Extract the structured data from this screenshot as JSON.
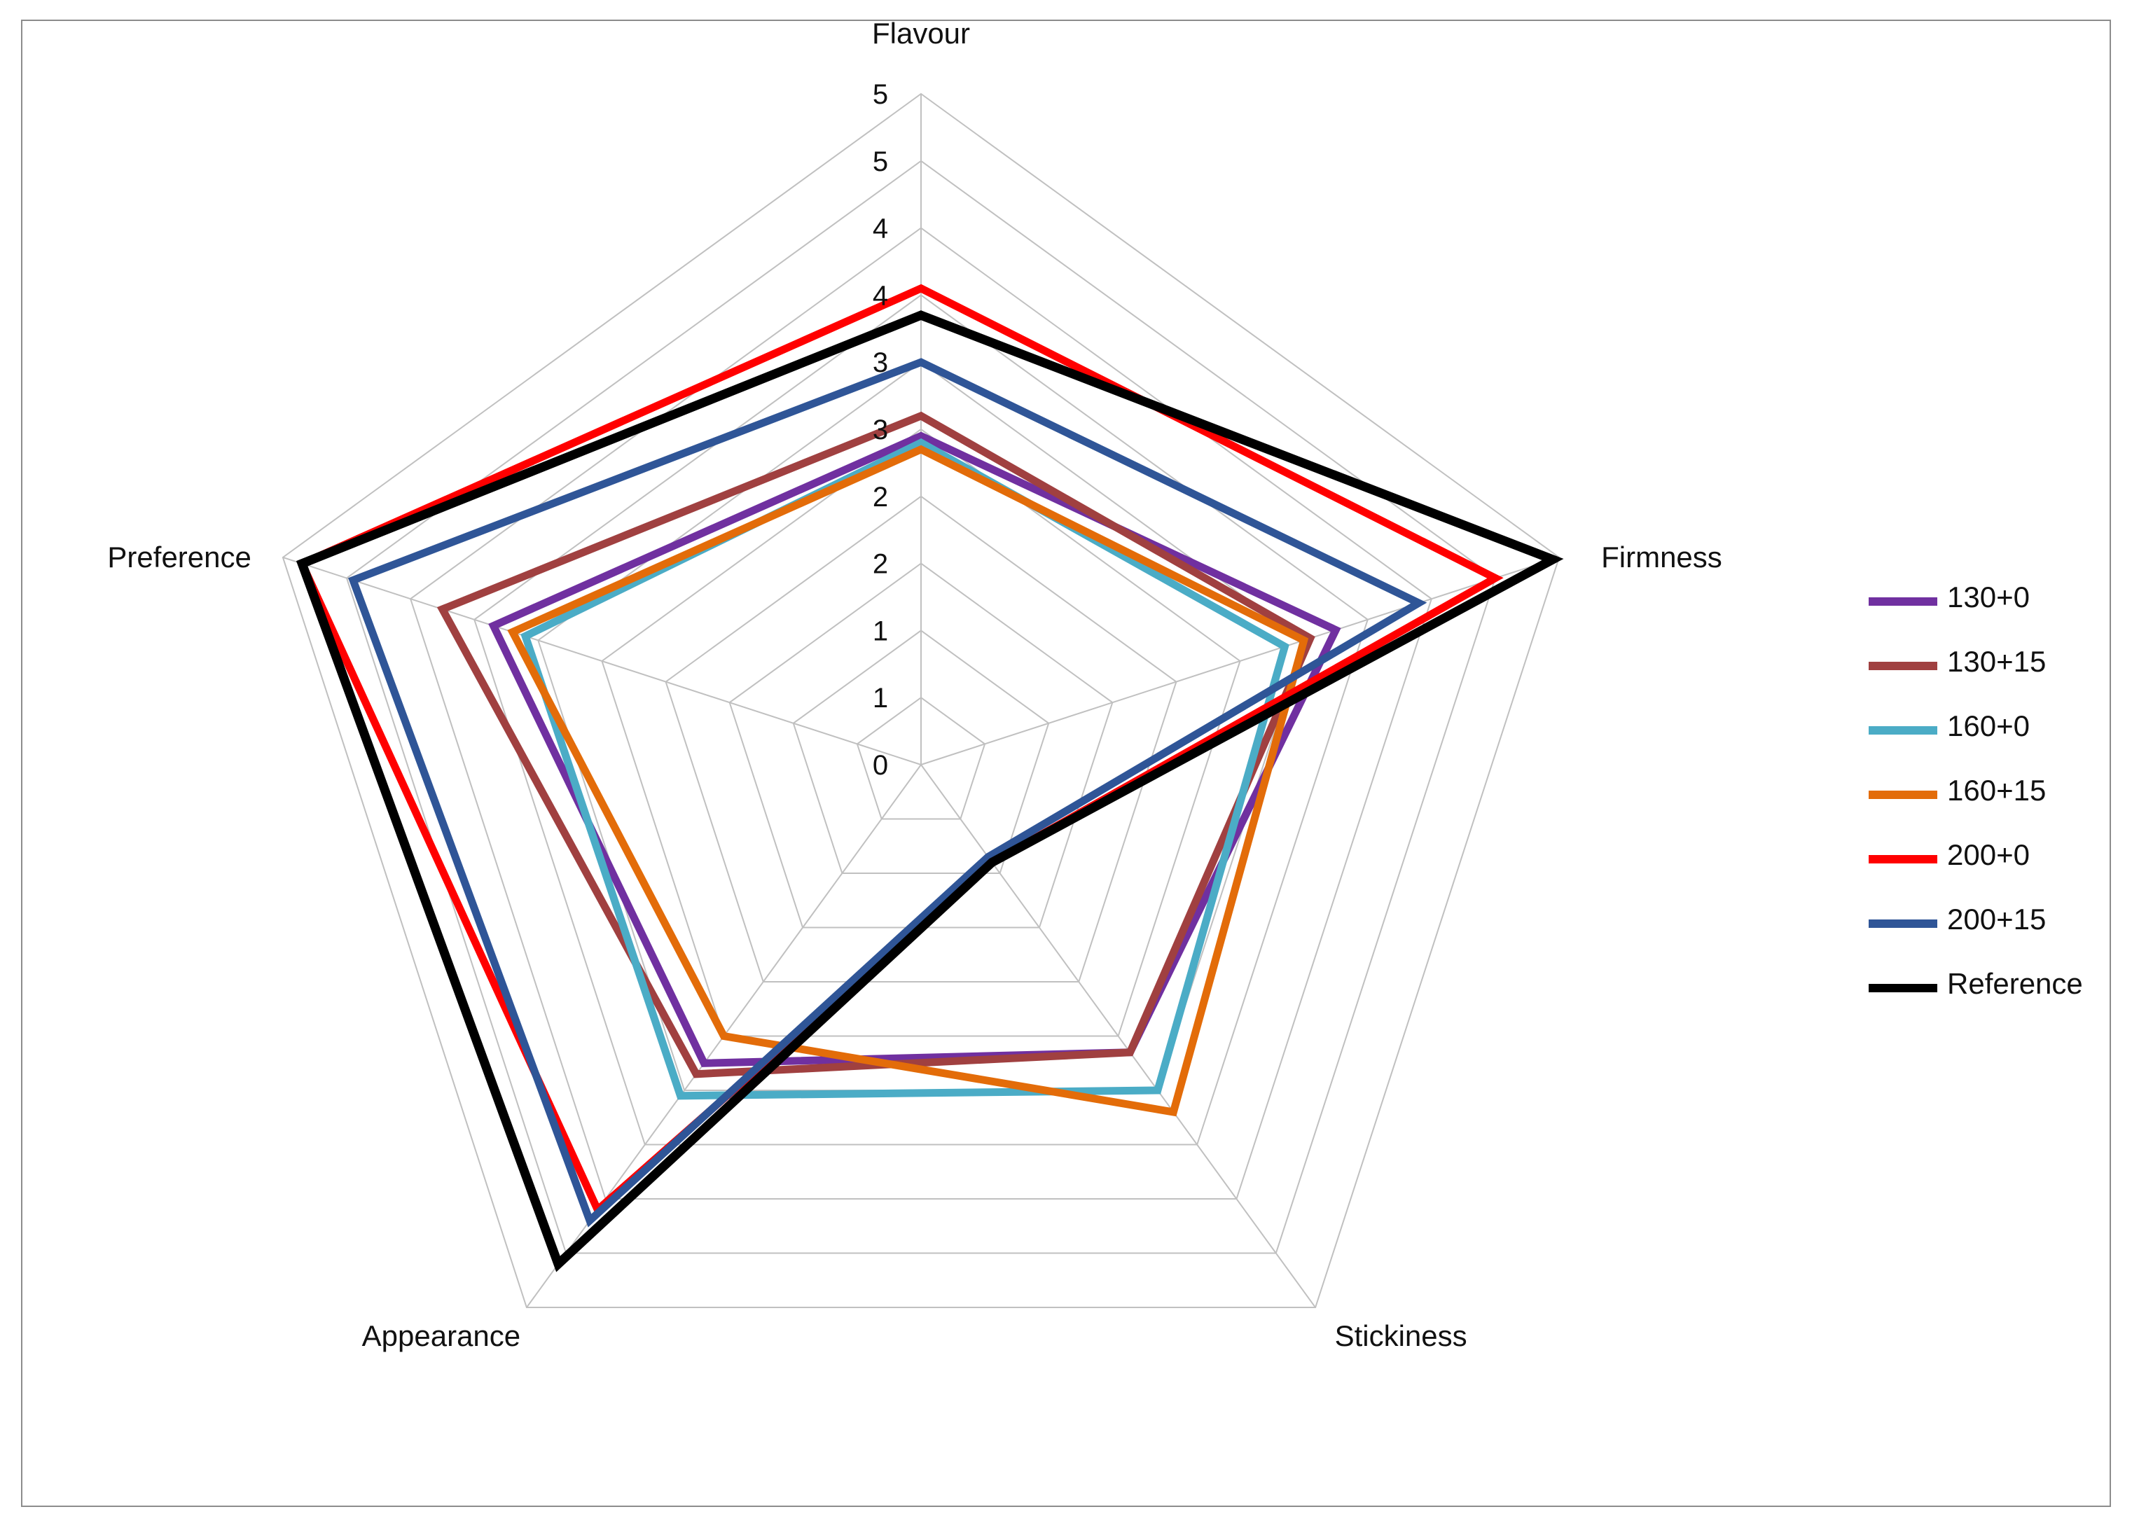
{
  "chart_data": {
    "type": "radar",
    "axes": [
      "Flavour",
      "Firmness",
      "Stickiness",
      "Appearance",
      "Preference"
    ],
    "tick_labels": [
      "0",
      "1",
      "1",
      "2",
      "2",
      "3",
      "3",
      "4",
      "4",
      "5",
      "5"
    ],
    "range": [
      0,
      5
    ],
    "grid": true,
    "legend_position": "right",
    "series": [
      {
        "name": "130+0",
        "color": "#7030a0",
        "values": [
          2.45,
          3.25,
          2.65,
          2.75,
          3.35
        ]
      },
      {
        "name": "130+15",
        "color": "#a04040",
        "values": [
          2.6,
          3.05,
          2.65,
          2.85,
          3.75
        ]
      },
      {
        "name": "160+0",
        "color": "#4bacc6",
        "values": [
          2.4,
          2.85,
          3.0,
          3.05,
          3.1
        ]
      },
      {
        "name": "160+15",
        "color": "#e36c09",
        "values": [
          2.35,
          3.0,
          3.2,
          2.5,
          3.2
        ]
      },
      {
        "name": "200+0",
        "color": "#ff0000",
        "values": [
          3.55,
          4.5,
          0.9,
          4.1,
          4.85
        ]
      },
      {
        "name": "200+15",
        "color": "#2f5597",
        "values": [
          3.0,
          3.9,
          0.85,
          4.2,
          4.45
        ]
      },
      {
        "name": "Reference",
        "color": "#000000",
        "values": [
          3.35,
          4.95,
          0.9,
          4.6,
          4.85
        ]
      }
    ]
  }
}
